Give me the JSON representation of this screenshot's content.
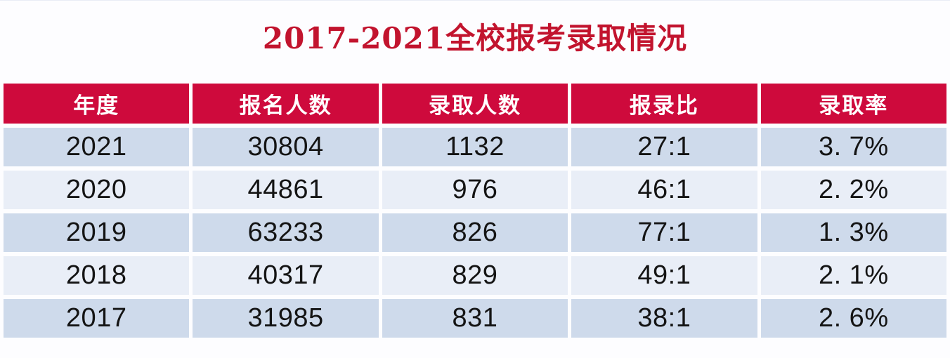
{
  "page": {
    "background_color": "#FDFDFF"
  },
  "title": {
    "text": "2017-2021全校报考录取情况",
    "color": "#C2142E"
  },
  "table": {
    "header": {
      "bg_color": "#CE0A3C",
      "text_color": "#FFFFFF",
      "labels": [
        "年度",
        "报名人数",
        "录取人数",
        "报录比",
        "录取率"
      ]
    },
    "row_colors": {
      "odd": "#CEDAEB",
      "even": "#E9EEF7"
    },
    "rows": [
      {
        "year": "2021",
        "applicants": "30804",
        "admitted": "1132",
        "ratio": "27:1",
        "rate": "3. 7%"
      },
      {
        "year": "2020",
        "applicants": "44861",
        "admitted": "976",
        "ratio": "46:1",
        "rate": "2. 2%"
      },
      {
        "year": "2019",
        "applicants": "63233",
        "admitted": "826",
        "ratio": "77:1",
        "rate": "1. 3%"
      },
      {
        "year": "2018",
        "applicants": "40317",
        "admitted": "829",
        "ratio": "49:1",
        "rate": "2. 1%"
      },
      {
        "year": "2017",
        "applicants": "31985",
        "admitted": "831",
        "ratio": "38:1",
        "rate": "2. 6%"
      }
    ]
  },
  "chart_data": {
    "type": "table",
    "title": "2017-2021全校报考录取情况",
    "columns": [
      "年度",
      "报名人数",
      "录取人数",
      "报录比",
      "录取率"
    ],
    "rows": [
      [
        "2021",
        30804,
        1132,
        "27:1",
        "3.7%"
      ],
      [
        "2020",
        44861,
        976,
        "46:1",
        "2.2%"
      ],
      [
        "2019",
        63233,
        826,
        "77:1",
        "1.3%"
      ],
      [
        "2018",
        40317,
        829,
        "49:1",
        "2.1%"
      ],
      [
        "2017",
        31985,
        831,
        "38:1",
        "2.6%"
      ]
    ]
  }
}
